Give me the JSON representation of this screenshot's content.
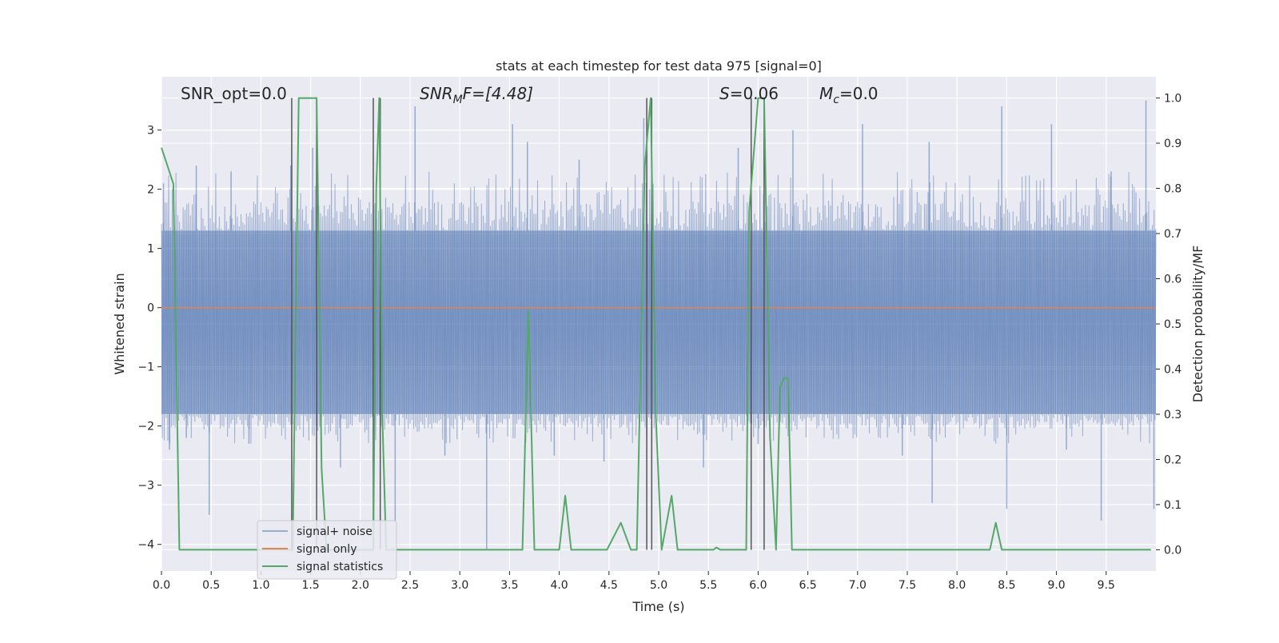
{
  "chart_data": {
    "type": "line",
    "title": "stats at each timestep for test data 975 [signal=0]",
    "xlabel": "Time (s)",
    "ylabel": "Whitened strain",
    "ylabel_right": "Detection probability/MF",
    "xlim": [
      0.0,
      10.0
    ],
    "ylim": [
      -4.45,
      3.9
    ],
    "ylim_right": [
      -0.047,
      1.047
    ],
    "xticks": [
      0.0,
      0.5,
      1.0,
      1.5,
      2.0,
      2.5,
      3.0,
      3.5,
      4.0,
      4.5,
      5.0,
      5.5,
      6.0,
      6.5,
      7.0,
      7.5,
      8.0,
      8.5,
      9.0,
      9.5
    ],
    "xtick_labels": [
      "0.0",
      "0.5",
      "1.0",
      "1.5",
      "2.0",
      "2.5",
      "3.0",
      "3.5",
      "4.0",
      "4.5",
      "5.0",
      "5.5",
      "6.0",
      "6.5",
      "7.0",
      "7.5",
      "8.0",
      "8.5",
      "9.0",
      "9.5"
    ],
    "yticks": [
      3,
      2,
      1,
      0,
      -1,
      -2,
      -3,
      -4
    ],
    "ytick_labels": [
      "3",
      "2",
      "1",
      "0",
      "−1",
      "−2",
      "−3",
      "−4"
    ],
    "yticks_right": [
      1.0,
      0.9,
      0.8,
      0.7,
      0.6,
      0.5,
      0.4,
      0.3,
      0.2,
      0.1,
      0.0
    ],
    "ytick_labels_right": [
      "1.0",
      "0.9",
      "0.8",
      "0.7",
      "0.6",
      "0.5",
      "0.4",
      "0.3",
      "0.2",
      "0.1",
      "0.0"
    ],
    "grid": true,
    "legend_placement": "lower-left",
    "annotations": {
      "snr_opt": "SNR_opt=0.0",
      "snr_mf_main": "SNR",
      "snr_mf_sub": "M",
      "snr_mf_tail": "F=[4.48]",
      "s_main": "S",
      "s_tail": "=0.06",
      "mc_main": "M",
      "mc_sub": "c",
      "mc_tail": "=0.0"
    },
    "series": [
      {
        "name": "signal+ noise",
        "color": "#4c72b0",
        "axis": "left",
        "kind": "noise",
        "band": [
          -1.8,
          1.3
        ],
        "typical_envelope": [
          -2.3,
          2.3
        ],
        "spikes_high": [
          [
            0.02,
            2.1
          ],
          [
            0.35,
            2.4
          ],
          [
            0.7,
            2.3
          ],
          [
            1.3,
            2.4
          ],
          [
            1.52,
            2.7
          ],
          [
            2.55,
            3.4
          ],
          [
            3.53,
            3.1
          ],
          [
            3.68,
            2.8
          ],
          [
            4.2,
            2.5
          ],
          [
            4.85,
            3.2
          ],
          [
            5.8,
            2.7
          ],
          [
            6.35,
            3.0
          ],
          [
            7.05,
            3.1
          ],
          [
            7.72,
            2.8
          ],
          [
            8.45,
            3.4
          ],
          [
            8.95,
            3.1
          ],
          [
            9.55,
            2.3
          ],
          [
            9.9,
            3.5
          ]
        ],
        "spikes_low": [
          [
            0.08,
            -2.4
          ],
          [
            0.25,
            -2.2
          ],
          [
            0.48,
            -3.5
          ],
          [
            0.88,
            -2.3
          ],
          [
            1.8,
            -2.7
          ],
          [
            2.35,
            -3.6
          ],
          [
            2.85,
            -2.5
          ],
          [
            3.27,
            -4.1
          ],
          [
            3.95,
            -2.5
          ],
          [
            4.45,
            -2.6
          ],
          [
            5.45,
            -2.7
          ],
          [
            6.0,
            -2.3
          ],
          [
            7.45,
            -2.5
          ],
          [
            7.75,
            -3.3
          ],
          [
            8.5,
            -3.4
          ],
          [
            9.1,
            -2.4
          ],
          [
            9.45,
            -3.6
          ],
          [
            9.98,
            -3.4
          ]
        ]
      },
      {
        "name": "signal only",
        "color": "#dd8452",
        "axis": "left",
        "x": [
          0.0,
          10.0
        ],
        "y": [
          0.0,
          0.0
        ]
      },
      {
        "name": "signal statistics",
        "color": "#55a868",
        "axis": "right",
        "x": [
          0.0,
          0.06,
          0.12,
          0.18,
          1.32,
          1.38,
          1.56,
          1.61,
          1.66,
          2.13,
          2.16,
          2.19,
          2.22,
          2.26,
          3.63,
          3.69,
          3.75,
          4.0,
          4.06,
          4.12,
          4.48,
          4.62,
          4.72,
          4.78,
          4.86,
          4.92,
          4.97,
          5.03,
          5.13,
          5.19,
          5.55,
          5.58,
          5.62,
          5.88,
          5.91,
          6.0,
          6.06,
          6.12,
          6.18,
          6.22,
          6.26,
          6.3,
          6.32,
          6.34,
          8.33,
          8.39,
          8.45,
          9.95
        ],
        "y": [
          0.89,
          0.85,
          0.81,
          0.0,
          0.0,
          1.0,
          1.0,
          0.18,
          0.0,
          0.0,
          0.8,
          1.0,
          0.3,
          0.0,
          0.0,
          0.53,
          0.0,
          0.0,
          0.12,
          0.0,
          0.0,
          0.06,
          0.0,
          0.0,
          0.85,
          1.0,
          0.3,
          0.0,
          0.12,
          0.0,
          0.0,
          0.005,
          0.0,
          0.0,
          0.75,
          1.0,
          1.0,
          0.25,
          0.0,
          0.36,
          0.38,
          0.38,
          0.2,
          0.0,
          0.0,
          0.06,
          0.0,
          0.0
        ]
      }
    ],
    "vertical_markers": {
      "color": "#555555",
      "x": [
        1.31,
        1.56,
        2.13,
        2.2,
        4.88,
        4.93,
        5.93,
        6.06
      ]
    }
  }
}
